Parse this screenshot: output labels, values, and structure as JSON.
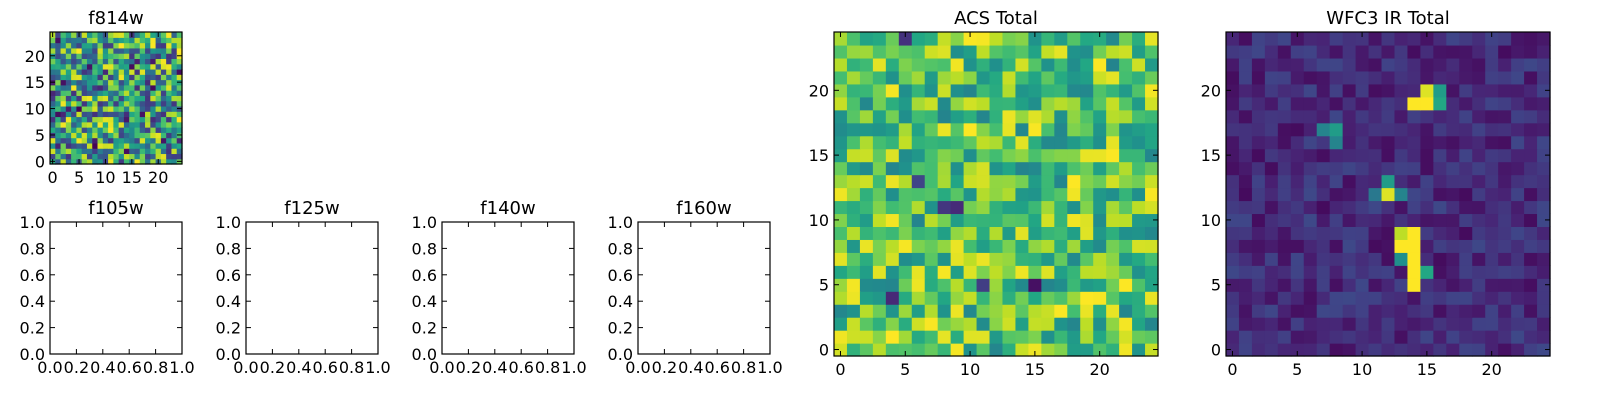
{
  "chart_data": [
    {
      "id": "f814w",
      "type": "heatmap",
      "title": "f814w",
      "shape": [
        25,
        25
      ],
      "xlim": [
        -0.5,
        24.5
      ],
      "ylim": [
        -0.5,
        24.5
      ],
      "xticks": [
        0,
        5,
        10,
        15,
        20
      ],
      "yticks": [
        0,
        5,
        10,
        15,
        20
      ],
      "colormap": "viridis",
      "seed": 814,
      "value_range": [
        0.15,
        1.0
      ],
      "outlier_rate": 0.06,
      "hotspots": []
    },
    {
      "id": "f105w",
      "type": "heatmap",
      "title": "f105w",
      "empty": true,
      "xlim": [
        0.0,
        1.0
      ],
      "ylim": [
        0.0,
        1.0
      ],
      "xticks": [
        "0.0",
        "0.2",
        "0.4",
        "0.6",
        "0.8",
        "1.0"
      ],
      "yticks": [
        "0.0",
        "0.2",
        "0.4",
        "0.6",
        "0.8",
        "1.0"
      ]
    },
    {
      "id": "f125w",
      "type": "heatmap",
      "title": "f125w",
      "empty": true,
      "xlim": [
        0.0,
        1.0
      ],
      "ylim": [
        0.0,
        1.0
      ],
      "xticks": [
        "0.0",
        "0.2",
        "0.4",
        "0.6",
        "0.8",
        "1.0"
      ],
      "yticks": [
        "0.0",
        "0.2",
        "0.4",
        "0.6",
        "0.8",
        "1.0"
      ]
    },
    {
      "id": "f140w",
      "type": "heatmap",
      "title": "f140w",
      "empty": true,
      "xlim": [
        0.0,
        1.0
      ],
      "ylim": [
        0.0,
        1.0
      ],
      "xticks": [
        "0.0",
        "0.2",
        "0.4",
        "0.6",
        "0.8",
        "1.0"
      ],
      "yticks": [
        "0.0",
        "0.2",
        "0.4",
        "0.6",
        "0.8",
        "1.0"
      ]
    },
    {
      "id": "f160w",
      "type": "heatmap",
      "title": "f160w",
      "empty": true,
      "xlim": [
        0.0,
        1.0
      ],
      "ylim": [
        0.0,
        1.0
      ],
      "xticks": [
        "0.0",
        "0.2",
        "0.4",
        "0.6",
        "0.8",
        "1.0"
      ],
      "yticks": [
        "0.0",
        "0.2",
        "0.4",
        "0.6",
        "0.8",
        "1.0"
      ]
    },
    {
      "id": "acs-total",
      "type": "heatmap",
      "title": "ACS Total",
      "shape": [
        25,
        25
      ],
      "xlim": [
        -0.5,
        24.5
      ],
      "ylim": [
        -0.5,
        24.5
      ],
      "xticks": [
        0,
        5,
        10,
        15,
        20
      ],
      "yticks": [
        0,
        5,
        10,
        15,
        20
      ],
      "colormap": "viridis",
      "seed": 4242,
      "value_range": [
        0.45,
        1.0
      ],
      "outlier_rate": 0.015,
      "hotspots": []
    },
    {
      "id": "wfc3-ir-total",
      "type": "heatmap",
      "title": "WFC3 IR Total",
      "shape": [
        25,
        25
      ],
      "xlim": [
        -0.5,
        24.5
      ],
      "ylim": [
        -0.5,
        24.5
      ],
      "xticks": [
        0,
        5,
        10,
        15,
        20
      ],
      "yticks": [
        0,
        5,
        10,
        15,
        20
      ],
      "colormap": "viridis",
      "seed": 3160,
      "value_range": [
        0.03,
        0.22
      ],
      "outlier_rate": 0.0,
      "hotspots": [
        {
          "x": 14,
          "y": 19,
          "v": 1.0
        },
        {
          "x": 15,
          "y": 19,
          "v": 1.0
        },
        {
          "x": 15,
          "y": 20,
          "v": 0.95
        },
        {
          "x": 16,
          "y": 19,
          "v": 0.6
        },
        {
          "x": 16,
          "y": 20,
          "v": 0.55
        },
        {
          "x": 8,
          "y": 17,
          "v": 0.55
        },
        {
          "x": 7,
          "y": 17,
          "v": 0.45
        },
        {
          "x": 8,
          "y": 16,
          "v": 0.45
        },
        {
          "x": 12,
          "y": 12,
          "v": 0.95
        },
        {
          "x": 12,
          "y": 13,
          "v": 0.55
        },
        {
          "x": 11,
          "y": 12,
          "v": 0.4
        },
        {
          "x": 13,
          "y": 12,
          "v": 0.45
        },
        {
          "x": 13,
          "y": 9,
          "v": 0.9
        },
        {
          "x": 14,
          "y": 9,
          "v": 1.0
        },
        {
          "x": 13,
          "y": 8,
          "v": 1.0
        },
        {
          "x": 14,
          "y": 8,
          "v": 1.0
        },
        {
          "x": 14,
          "y": 7,
          "v": 1.0
        },
        {
          "x": 14,
          "y": 6,
          "v": 1.0
        },
        {
          "x": 14,
          "y": 5,
          "v": 1.0
        },
        {
          "x": 15,
          "y": 6,
          "v": 0.6
        },
        {
          "x": 13,
          "y": 7,
          "v": 0.5
        }
      ]
    }
  ]
}
